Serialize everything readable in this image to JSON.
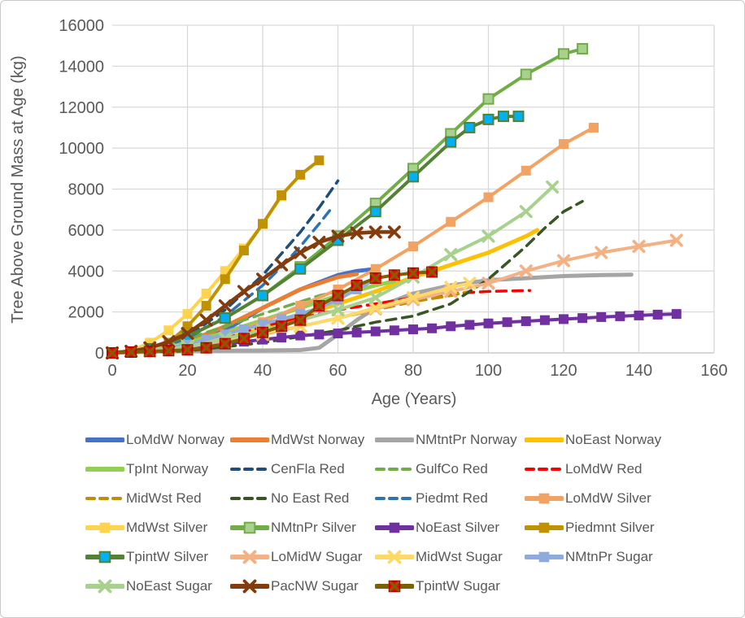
{
  "figure": {
    "xlabel": "Age (Years)",
    "ylabel": "Tree Above Ground Mass at Age (kg)"
  },
  "chart_data": {
    "type": "line",
    "title": "",
    "xlabel": "Age (Years)",
    "ylabel": "Tree Above Ground Mass at Age (kg)",
    "xlim": [
      0,
      160
    ],
    "ylim": [
      0,
      16000
    ],
    "x_ticks": [
      0,
      20,
      40,
      60,
      80,
      100,
      120,
      140,
      160
    ],
    "y_ticks": [
      0,
      2000,
      4000,
      6000,
      8000,
      10000,
      12000,
      14000,
      16000
    ],
    "grid": true,
    "legend_position": "bottom",
    "colors": {
      "axis_text": "#595959",
      "gridline": "#D9D9D9",
      "axis_line": "#BFBFBF",
      "background": "#FFFFFF",
      "frame_border": "#C9C9C9"
    },
    "series": [
      {
        "name": "LoMdW Norway",
        "color": "#4472C4",
        "width": 5,
        "dash": false,
        "marker": null,
        "x": [
          0,
          10,
          20,
          30,
          40,
          50,
          60,
          65,
          70
        ],
        "y": [
          0,
          100,
          400,
          1100,
          2200,
          3100,
          3800,
          4000,
          4100
        ]
      },
      {
        "name": "MdWst Norway",
        "color": "#ED7D31",
        "width": 5,
        "dash": false,
        "marker": null,
        "x": [
          0,
          10,
          20,
          30,
          40,
          50,
          60,
          65
        ],
        "y": [
          0,
          150,
          550,
          1300,
          2200,
          3100,
          3700,
          3850
        ]
      },
      {
        "name": "NMtntPr Norway",
        "color": "#A5A5A5",
        "width": 5,
        "dash": false,
        "marker": null,
        "x": [
          0,
          10,
          20,
          30,
          40,
          50,
          55,
          60,
          65,
          70,
          80,
          90,
          100,
          110,
          120,
          130,
          138
        ],
        "y": [
          0,
          60,
          90,
          110,
          120,
          140,
          250,
          900,
          1600,
          2200,
          2900,
          3300,
          3550,
          3650,
          3750,
          3800,
          3820
        ]
      },
      {
        "name": "NoEast Norway",
        "color": "#FFC000",
        "width": 5,
        "dash": false,
        "marker": null,
        "x": [
          0,
          10,
          20,
          30,
          40,
          50,
          60,
          70,
          80,
          90,
          100,
          105,
          110,
          113
        ],
        "y": [
          0,
          100,
          300,
          700,
          1200,
          1800,
          2400,
          3000,
          3700,
          4300,
          4900,
          5300,
          5700,
          6000
        ]
      },
      {
        "name": "TpInt Norway",
        "color": "#92D050",
        "width": 5,
        "dash": false,
        "marker": null,
        "x": [
          0,
          10,
          20,
          30,
          40,
          50,
          60,
          70,
          75
        ],
        "y": [
          0,
          150,
          500,
          1000,
          1600,
          2200,
          2800,
          3300,
          3500
        ]
      },
      {
        "name": "CenFla Red",
        "color": "#1F4E79",
        "width": 3.5,
        "dash": true,
        "marker": null,
        "x": [
          0,
          10,
          20,
          30,
          40,
          50,
          55,
          60
        ],
        "y": [
          0,
          150,
          800,
          2100,
          3800,
          5900,
          7100,
          8400
        ]
      },
      {
        "name": "GulfCo Red",
        "color": "#70AD47",
        "width": 3.5,
        "dash": true,
        "marker": null,
        "x": [
          0,
          10,
          20,
          30,
          40,
          50,
          55,
          60
        ],
        "y": [
          0,
          250,
          700,
          1300,
          1900,
          2500,
          2800,
          3000
        ]
      },
      {
        "name": "LoMdW Red",
        "color": "#FF0000",
        "width": 3.5,
        "dash": true,
        "marker": null,
        "x": [
          0,
          10,
          20,
          30,
          40,
          50,
          60,
          70,
          80,
          90,
          100,
          111
        ],
        "y": [
          0,
          100,
          300,
          700,
          1300,
          1700,
          2100,
          2400,
          2700,
          2900,
          3000,
          3050
        ]
      },
      {
        "name": "MidWst Red",
        "color": "#BF8F00",
        "width": 3.5,
        "dash": true,
        "marker": null,
        "x": [
          0,
          10,
          20,
          30,
          40,
          50,
          60,
          70,
          80,
          90,
          95
        ],
        "y": [
          0,
          100,
          300,
          600,
          900,
          1300,
          1700,
          2100,
          2500,
          2800,
          3000
        ]
      },
      {
        "name": "No East Red",
        "color": "#375623",
        "width": 3.5,
        "dash": true,
        "marker": null,
        "x": [
          0,
          20,
          40,
          60,
          70,
          80,
          90,
          95,
          100,
          105,
          110,
          115,
          120,
          125
        ],
        "y": [
          0,
          100,
          500,
          1100,
          1500,
          1800,
          2400,
          3000,
          3600,
          4400,
          5200,
          6100,
          6900,
          7400
        ]
      },
      {
        "name": "Piedmt Red",
        "color": "#2E74B5",
        "width": 3.5,
        "dash": true,
        "marker": null,
        "x": [
          0,
          10,
          20,
          30,
          40,
          45,
          50,
          55,
          58
        ],
        "y": [
          0,
          120,
          700,
          1800,
          3300,
          4200,
          5200,
          6300,
          7000
        ]
      },
      {
        "name": "LoMdW Silver",
        "color": "#F2A263",
        "width": 4,
        "dash": false,
        "marker": "square",
        "marker_fill": "#F2A263",
        "x": [
          0,
          10,
          20,
          30,
          40,
          50,
          60,
          70,
          80,
          90,
          100,
          110,
          120,
          128
        ],
        "y": [
          0,
          100,
          400,
          900,
          1500,
          2300,
          3100,
          4100,
          5200,
          6400,
          7600,
          8900,
          10200,
          11000
        ]
      },
      {
        "name": "MdWst Silver",
        "color": "#FFD34D",
        "width": 4,
        "dash": false,
        "marker": "square",
        "marker_fill": "#FFD34D",
        "x": [
          0,
          5,
          10,
          15,
          20,
          25,
          30,
          35,
          40,
          45
        ],
        "y": [
          0,
          100,
          500,
          1100,
          1900,
          2900,
          4000,
          5100,
          6300,
          7650
        ]
      },
      {
        "name": "NMtnPr Silver",
        "color": "#70AD47",
        "width": 4,
        "dash": false,
        "marker": "square",
        "marker_fill": "#A9D18E",
        "marker_stroke": "#70AD47",
        "x": [
          0,
          10,
          20,
          30,
          40,
          50,
          60,
          70,
          80,
          90,
          100,
          110,
          120,
          125
        ],
        "y": [
          0,
          200,
          800,
          1700,
          2800,
          4200,
          5700,
          7300,
          9000,
          10700,
          12400,
          13600,
          14600,
          14850
        ]
      },
      {
        "name": "NoEast Silver",
        "color": "#7030A0",
        "width": 4,
        "dash": false,
        "marker": "square",
        "marker_fill": "#7030A0",
        "x": [
          0,
          5,
          10,
          15,
          20,
          25,
          30,
          35,
          40,
          45,
          50,
          55,
          60,
          65,
          70,
          75,
          80,
          85,
          90,
          95,
          100,
          105,
          110,
          115,
          120,
          125,
          130,
          135,
          140,
          145,
          150
        ],
        "y": [
          0,
          50,
          100,
          180,
          260,
          350,
          450,
          550,
          650,
          750,
          850,
          900,
          950,
          1000,
          1050,
          1100,
          1150,
          1200,
          1300,
          1370,
          1440,
          1500,
          1550,
          1600,
          1650,
          1700,
          1750,
          1790,
          1830,
          1870,
          1900
        ]
      },
      {
        "name": "Piedmnt Silver",
        "color": "#C09100",
        "width": 4,
        "dash": false,
        "marker": "square",
        "marker_fill": "#C09100",
        "x": [
          0,
          5,
          10,
          15,
          20,
          25,
          30,
          35,
          40,
          45,
          50,
          55
        ],
        "y": [
          0,
          50,
          200,
          500,
          1300,
          2300,
          3600,
          5000,
          6300,
          7700,
          8700,
          9400
        ]
      },
      {
        "name": "TpintW Silver",
        "color": "#548235",
        "width": 4,
        "dash": false,
        "marker": "square",
        "marker_fill": "#00B0F0",
        "marker_stroke": "#548235",
        "x": [
          0,
          10,
          20,
          30,
          40,
          50,
          60,
          70,
          80,
          90,
          95,
          100,
          104,
          108
        ],
        "y": [
          0,
          200,
          800,
          1700,
          2800,
          4100,
          5500,
          6900,
          8600,
          10300,
          11000,
          11400,
          11550,
          11550
        ]
      },
      {
        "name": "LoMidW Sugar",
        "color": "#F4B183",
        "width": 4,
        "dash": false,
        "marker": "x",
        "x": [
          0,
          10,
          20,
          30,
          40,
          50,
          60,
          70,
          80,
          90,
          100,
          110,
          120,
          130,
          140,
          150
        ],
        "y": [
          0,
          100,
          300,
          600,
          900,
          1300,
          1700,
          2150,
          2600,
          3000,
          3400,
          4000,
          4500,
          4900,
          5200,
          5500
        ]
      },
      {
        "name": "MidWst Sugar",
        "color": "#FFD966",
        "width": 4,
        "dash": false,
        "marker": "x",
        "x": [
          0,
          10,
          20,
          30,
          40,
          50,
          60,
          70,
          80,
          90,
          95
        ],
        "y": [
          0,
          150,
          400,
          700,
          1000,
          1300,
          1700,
          2200,
          2700,
          3200,
          3400
        ]
      },
      {
        "name": "NMtnPr Sugar",
        "color": "#8FAADC",
        "width": 4,
        "dash": false,
        "marker": "square",
        "marker_fill": "#8FAADC",
        "x": [
          0,
          5,
          10,
          15,
          20,
          25,
          30,
          35,
          40,
          45,
          50,
          55,
          60,
          65,
          70
        ],
        "y": [
          0,
          30,
          100,
          250,
          400,
          650,
          900,
          1150,
          1400,
          1650,
          1900,
          2200,
          2600,
          3100,
          3600
        ]
      },
      {
        "name": "NoEast Sugar",
        "color": "#A9D18E",
        "width": 4,
        "dash": false,
        "marker": "x",
        "x": [
          0,
          10,
          20,
          30,
          40,
          50,
          60,
          70,
          80,
          90,
          100,
          110,
          117
        ],
        "y": [
          0,
          100,
          300,
          700,
          1100,
          1600,
          2100,
          2700,
          3700,
          4800,
          5700,
          6900,
          8100
        ]
      },
      {
        "name": "PacNW Sugar",
        "color": "#843C0C",
        "width": 4.5,
        "dash": false,
        "marker": "x",
        "x": [
          0,
          5,
          10,
          15,
          20,
          25,
          30,
          35,
          40,
          45,
          50,
          55,
          60,
          65,
          70,
          75
        ],
        "y": [
          0,
          80,
          250,
          550,
          950,
          1600,
          2300,
          3000,
          3600,
          4300,
          4900,
          5400,
          5700,
          5850,
          5900,
          5900
        ]
      },
      {
        "name": "TpintW Sugar",
        "color": "#7F6000",
        "width": 4,
        "dash": false,
        "marker": "xsquare",
        "marker_fill": "#FF0000",
        "marker_stroke": "#C00000",
        "x": [
          0,
          5,
          10,
          15,
          20,
          25,
          30,
          35,
          40,
          45,
          50,
          55,
          60,
          65,
          70,
          75,
          80,
          85
        ],
        "y": [
          0,
          40,
          70,
          110,
          150,
          250,
          450,
          700,
          1000,
          1300,
          1600,
          2300,
          2800,
          3300,
          3650,
          3800,
          3900,
          3950
        ]
      }
    ]
  }
}
